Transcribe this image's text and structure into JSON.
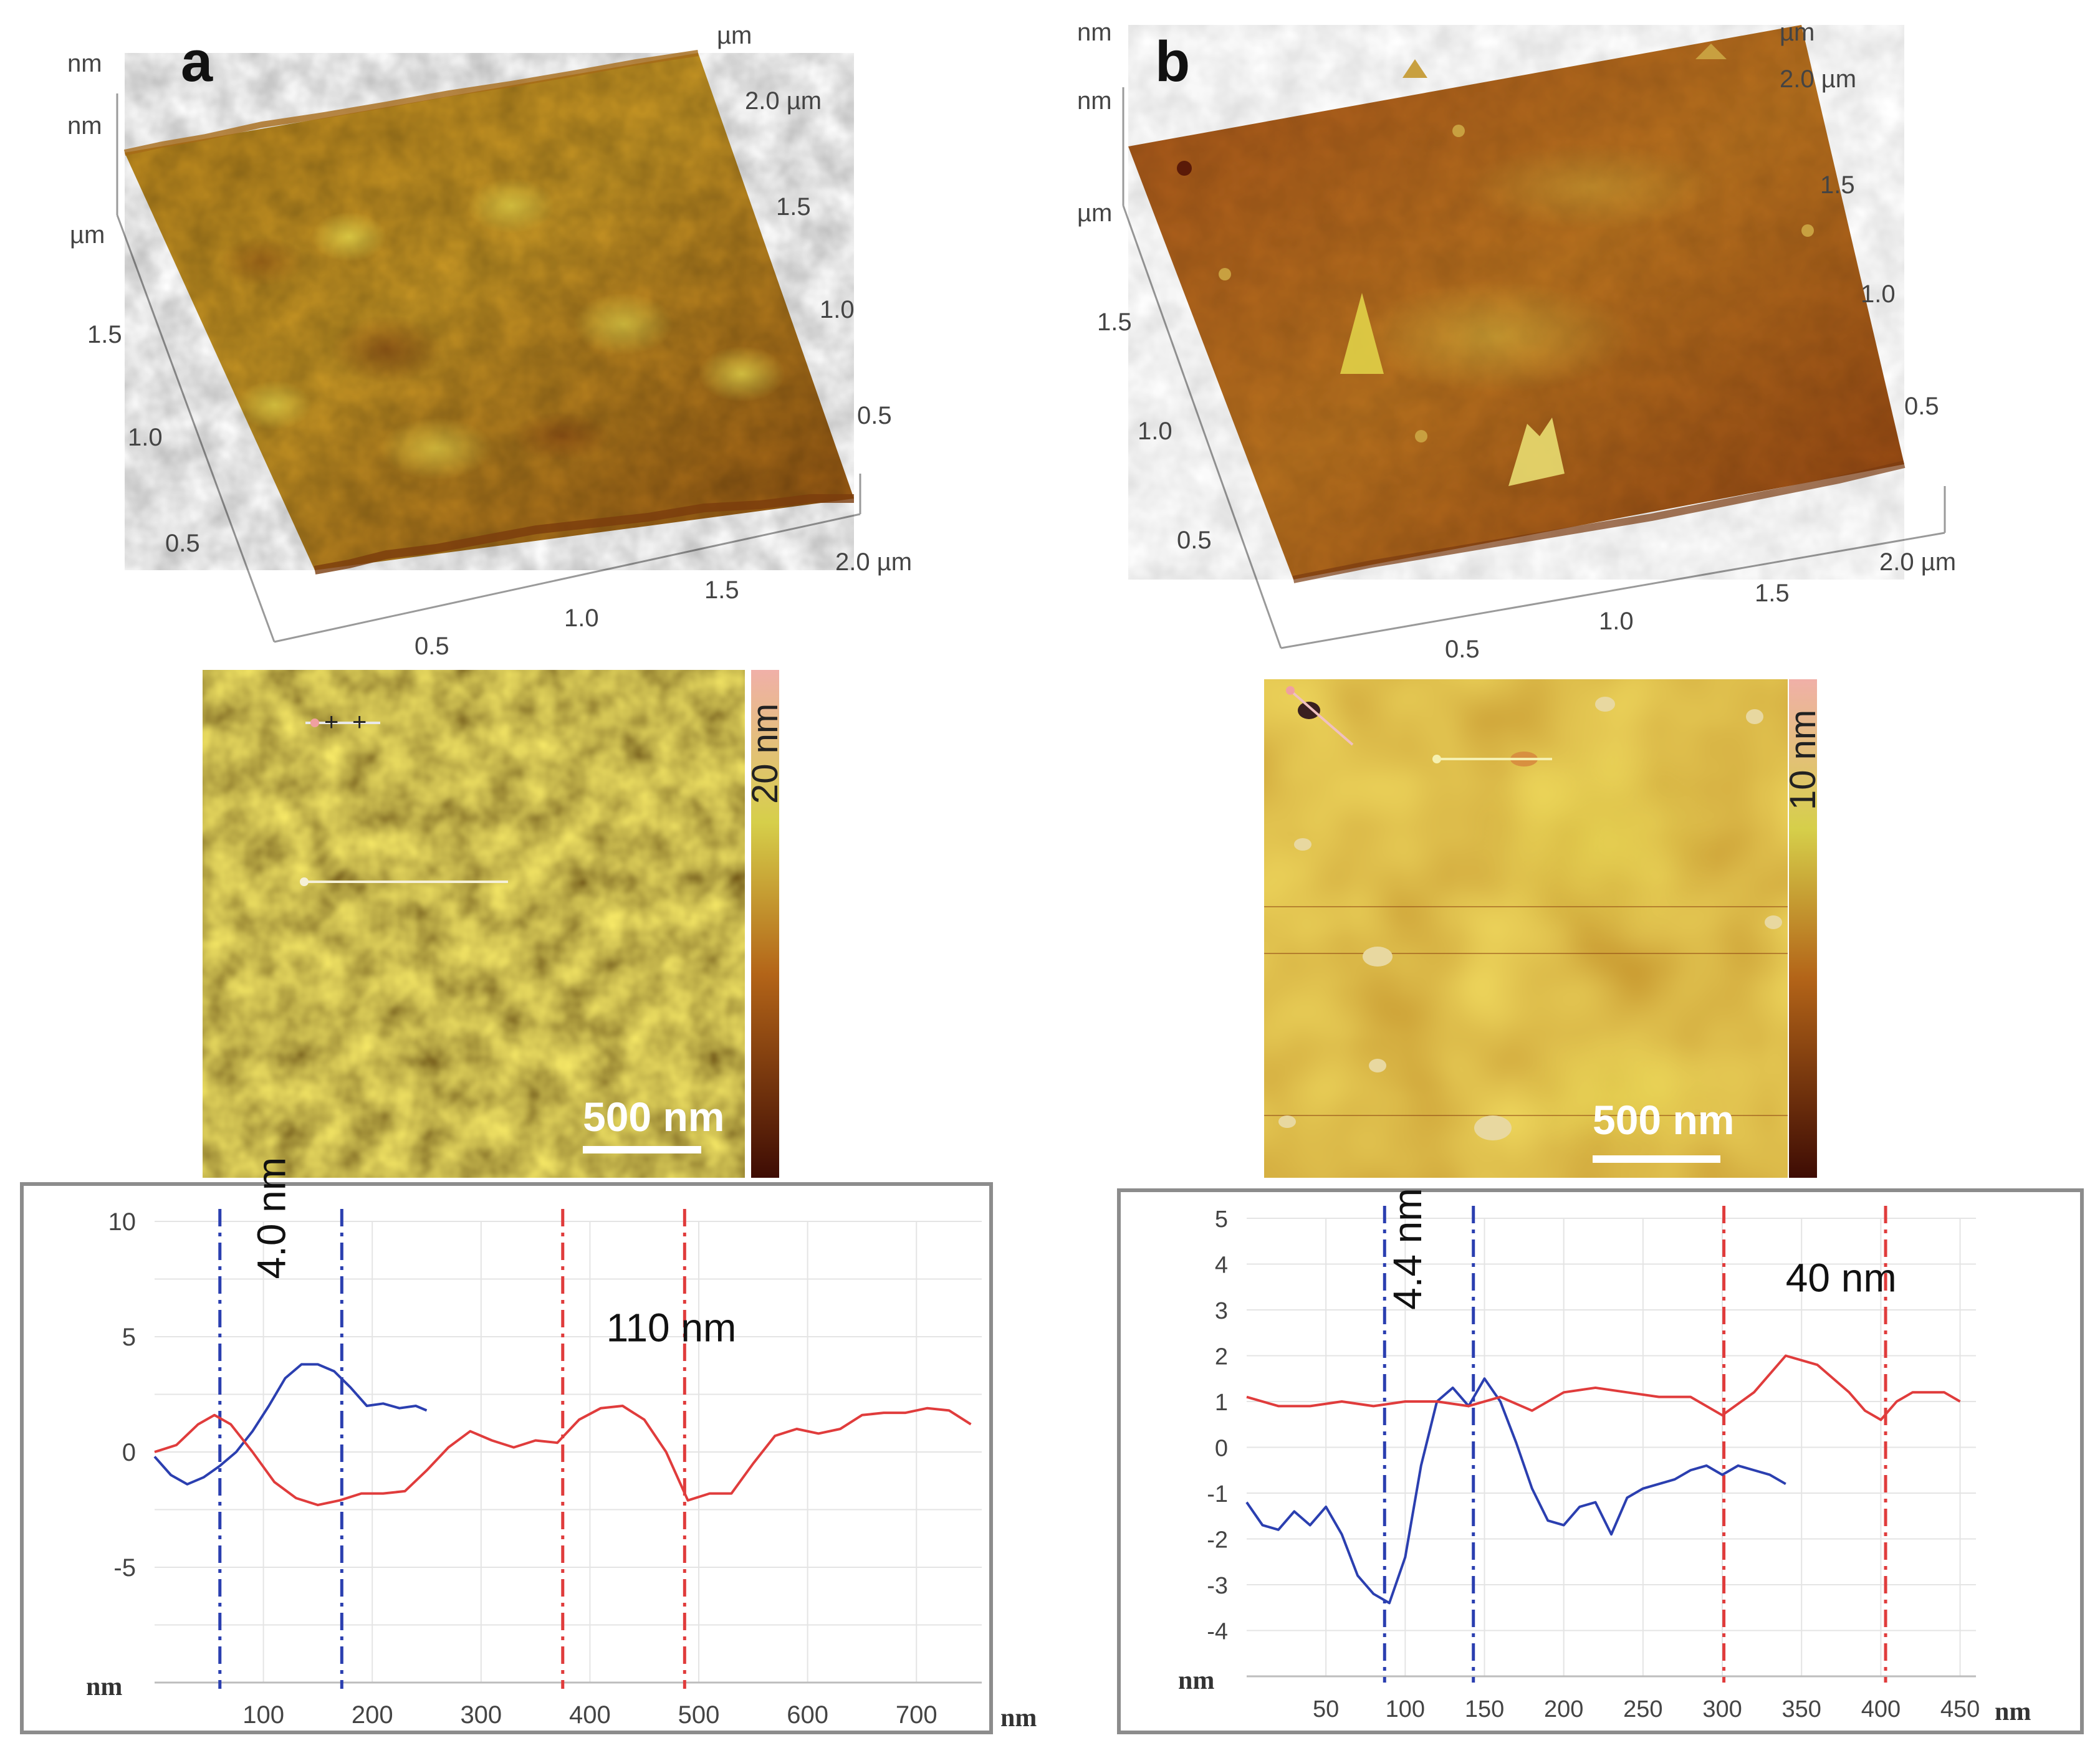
{
  "panels": [
    {
      "id": "a",
      "label": "a",
      "surface3d": {
        "z_labels": [
          "nm",
          "nm"
        ],
        "y_unit_label": "µm",
        "y_ticks": [
          "1.5",
          "1.0",
          "0.5"
        ],
        "x_ticks": [
          "0.5",
          "1.0",
          "1.5",
          "2.0 µm"
        ],
        "right_unit_label": "µm",
        "right_ticks": [
          "2.0 µm",
          "1.5",
          "1.0",
          "0.5"
        ]
      },
      "height_map": {
        "colorbar_label": "20 nm",
        "scale_bar_label": "500 nm"
      }
    },
    {
      "id": "b",
      "label": "b",
      "surface3d": {
        "z_labels": [
          "nm",
          "nm"
        ],
        "y_unit_label": "µm",
        "y_ticks": [
          "1.5",
          "1.0",
          "0.5"
        ],
        "x_ticks": [
          "0.5",
          "1.0",
          "1.5",
          "2.0 µm"
        ],
        "right_unit_label": "µm",
        "right_ticks": [
          "2.0 µm",
          "1.5",
          "1.0",
          "0.5"
        ]
      },
      "height_map": {
        "colorbar_label": "10 nm",
        "scale_bar_label": "500 nm"
      }
    }
  ],
  "colors": {
    "blue_profile": "#2b3fb0",
    "red_profile": "#e03c3c",
    "afm_dark": "#5a1a08",
    "afm_mid": "#b5651d",
    "afm_light": "#d8d040",
    "colorbar_top": "#f0b0a8"
  },
  "chart_data": [
    {
      "type": "line",
      "panel": "a",
      "xlabel": "nm",
      "ylabel": "nm",
      "xlim": [
        0,
        760
      ],
      "ylim": [
        -10,
        10
      ],
      "x_ticks": [
        100,
        200,
        300,
        400,
        500,
        600,
        700
      ],
      "y_ticks": [
        -5,
        0,
        5,
        10
      ],
      "y_tick_labels": [
        "-5",
        "0",
        "5",
        "10"
      ],
      "grid": true,
      "series": [
        {
          "name": "blue profile",
          "color": "#2b3fb0",
          "x": [
            0,
            15,
            30,
            45,
            60,
            75,
            90,
            105,
            120,
            135,
            150,
            165,
            180,
            195,
            210,
            225,
            240,
            250
          ],
          "y": [
            -0.2,
            -1.0,
            -1.4,
            -1.1,
            -0.6,
            0.0,
            0.9,
            2.0,
            3.2,
            3.8,
            3.8,
            3.5,
            2.8,
            2.0,
            2.1,
            1.9,
            2.0,
            1.8
          ]
        },
        {
          "name": "red profile",
          "color": "#e03c3c",
          "x": [
            0,
            20,
            40,
            55,
            70,
            90,
            110,
            130,
            150,
            170,
            190,
            210,
            230,
            250,
            270,
            290,
            310,
            330,
            350,
            370,
            390,
            410,
            430,
            450,
            470,
            490,
            510,
            530,
            550,
            570,
            590,
            610,
            630,
            650,
            670,
            690,
            710,
            730,
            750
          ],
          "y": [
            0.0,
            0.3,
            1.2,
            1.6,
            1.2,
            0.0,
            -1.3,
            -2.0,
            -2.3,
            -2.1,
            -1.8,
            -1.8,
            -1.7,
            -0.8,
            0.2,
            0.9,
            0.5,
            0.2,
            0.5,
            0.4,
            1.4,
            1.9,
            2.0,
            1.4,
            0.0,
            -2.1,
            -1.8,
            -1.8,
            -0.5,
            0.7,
            1.0,
            0.8,
            1.0,
            1.6,
            1.7,
            1.7,
            1.9,
            1.8,
            1.2
          ]
        }
      ],
      "vlines": [
        {
          "x": 60,
          "color": "#2b3fb0"
        },
        {
          "x": 172,
          "color": "#2b3fb0"
        },
        {
          "x": 375,
          "color": "#e03c3c"
        },
        {
          "x": 487,
          "color": "#e03c3c"
        }
      ],
      "annotations": [
        {
          "text": "4.0 nm",
          "x": 120,
          "y": 7.5,
          "rotation": -90
        },
        {
          "text": "110 nm",
          "x": 415,
          "y": 4.8,
          "rotation": 0
        }
      ]
    },
    {
      "type": "line",
      "panel": "b",
      "xlabel": "nm",
      "ylabel": "nm",
      "xlim": [
        0,
        460
      ],
      "ylim": [
        -5,
        5
      ],
      "x_ticks": [
        50,
        100,
        150,
        200,
        250,
        300,
        350,
        400,
        450
      ],
      "y_ticks": [
        -4,
        -3,
        -2,
        -1,
        0,
        1,
        2,
        3,
        4,
        5
      ],
      "y_tick_labels": [
        "-4",
        "-3",
        "-2",
        "-1",
        "0",
        "1",
        "2",
        "3",
        "4",
        "5"
      ],
      "grid": true,
      "series": [
        {
          "name": "blue profile",
          "color": "#2b3fb0",
          "x": [
            0,
            10,
            20,
            30,
            40,
            50,
            60,
            70,
            80,
            90,
            100,
            110,
            120,
            130,
            140,
            150,
            160,
            170,
            180,
            190,
            200,
            210,
            220,
            230,
            240,
            250,
            260,
            270,
            280,
            290,
            300,
            310,
            320,
            330,
            340
          ],
          "y": [
            -1.2,
            -1.7,
            -1.8,
            -1.4,
            -1.7,
            -1.3,
            -1.9,
            -2.8,
            -3.2,
            -3.4,
            -2.4,
            -0.4,
            1.0,
            1.3,
            0.9,
            1.5,
            1.0,
            0.1,
            -0.9,
            -1.6,
            -1.7,
            -1.3,
            -1.2,
            -1.9,
            -1.1,
            -0.9,
            -0.8,
            -0.7,
            -0.5,
            -0.4,
            -0.6,
            -0.4,
            -0.5,
            -0.6,
            -0.8
          ]
        },
        {
          "name": "red profile",
          "color": "#e03c3c",
          "x": [
            0,
            20,
            40,
            60,
            80,
            100,
            120,
            140,
            160,
            180,
            200,
            220,
            240,
            260,
            280,
            300,
            320,
            340,
            360,
            380,
            390,
            400,
            410,
            420,
            440,
            450
          ],
          "y": [
            1.1,
            0.9,
            0.9,
            1.0,
            0.9,
            1.0,
            1.0,
            0.9,
            1.1,
            0.8,
            1.2,
            1.3,
            1.2,
            1.1,
            1.1,
            0.7,
            1.2,
            2.0,
            1.8,
            1.2,
            0.8,
            0.6,
            1.0,
            1.2,
            1.2,
            1.0
          ]
        }
      ],
      "vlines": [
        {
          "x": 87,
          "color": "#2b3fb0"
        },
        {
          "x": 143,
          "color": "#2b3fb0"
        },
        {
          "x": 301,
          "color": "#e03c3c"
        },
        {
          "x": 403,
          "color": "#e03c3c"
        }
      ],
      "annotations": [
        {
          "text": "4.4 nm",
          "x": 110,
          "y": 3.0,
          "rotation": -90
        },
        {
          "text": "40 nm",
          "x": 340,
          "y": 3.4,
          "rotation": 0
        }
      ]
    }
  ]
}
